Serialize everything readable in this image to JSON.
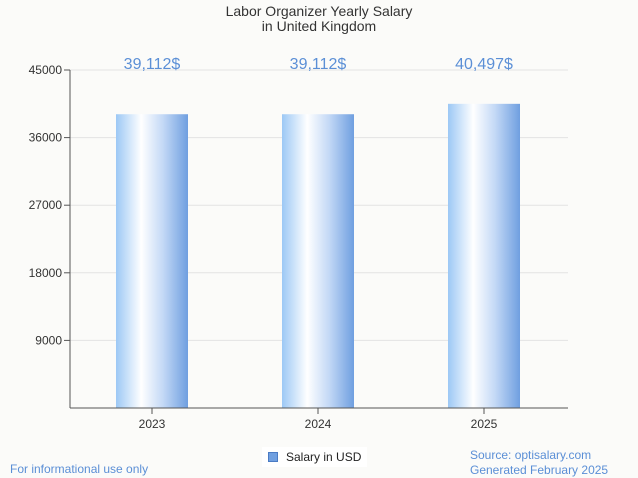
{
  "chart_data": {
    "type": "bar",
    "title_line1": "Labor Organizer Yearly Salary",
    "title_line2": "in United Kingdom",
    "categories": [
      "2023",
      "2024",
      "2025"
    ],
    "values": [
      39112,
      39112,
      40497
    ],
    "data_labels": [
      "39,112$",
      "39,112$",
      "40,497$"
    ],
    "y_ticks": [
      "9000",
      "18000",
      "27000",
      "36000",
      "45000"
    ],
    "ylim": [
      0,
      45000
    ],
    "legend": "Salary in USD",
    "legend_position": "bottom-center",
    "grid": true,
    "colors": {
      "bar_light": "#ffffff",
      "bar_mid": "#c9e2fb",
      "bar_dark": "#6f9fe0",
      "label": "#5b8fd6"
    }
  },
  "footer": {
    "left_note": "For informational use only",
    "source": "Source: optisalary.com",
    "generated": "Generated February 2025"
  }
}
